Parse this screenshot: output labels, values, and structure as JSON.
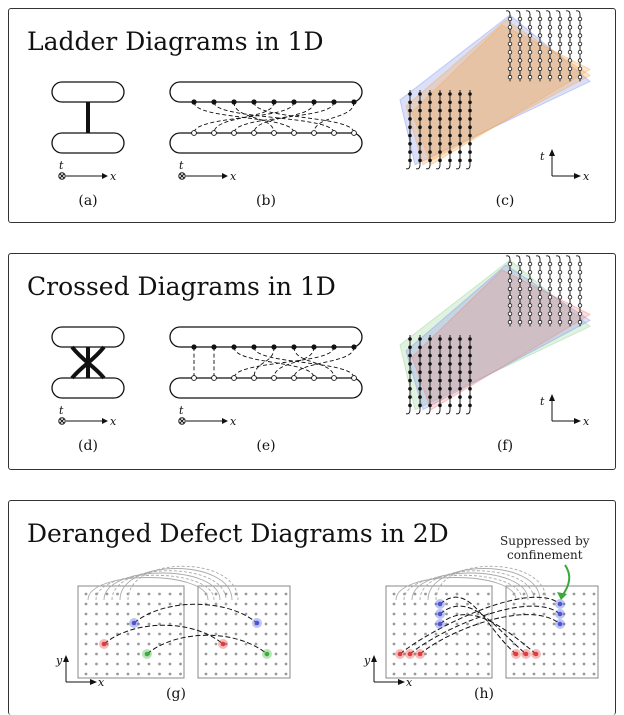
{
  "panels": [
    {
      "title": "Ladder Diagrams in 1D",
      "labels": [
        "(a)",
        "(b)",
        "(c)"
      ]
    },
    {
      "title": "Crossed Diagrams in 1D",
      "labels": [
        "(d)",
        "(e)",
        "(f)"
      ]
    },
    {
      "title": "Deranged Defect Diagrams in 2D",
      "labels": [
        "(g)",
        "(h)"
      ]
    }
  ],
  "axes": {
    "t": "t",
    "x": "x",
    "y": "y"
  },
  "annotation": {
    "line1": "Suppressed by",
    "line2": "confinement"
  },
  "colors": {
    "orange": "#f4a74d",
    "blue": "#7f8fe8",
    "green": "#8fd08f",
    "red": "#f0807a",
    "confine_arrow": "#3aa83a",
    "defect_red": "#e23b3b",
    "defect_green": "#3ab03a",
    "defect_blue": "#4a55d8"
  }
}
